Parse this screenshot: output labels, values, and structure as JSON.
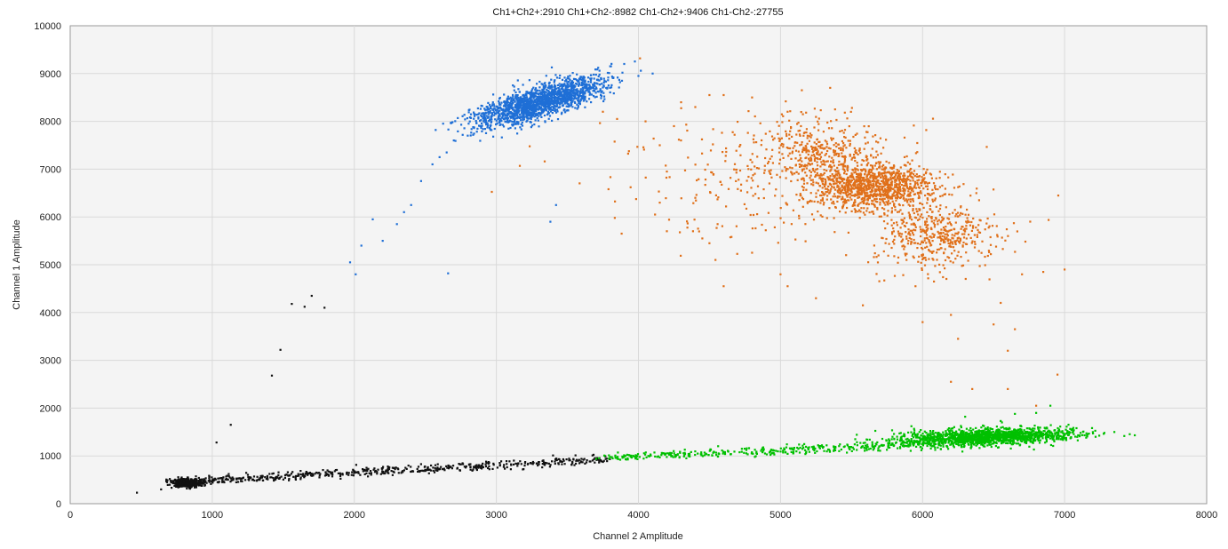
{
  "chart_data": {
    "type": "scatter",
    "title": "Ch1+Ch2+:2910 Ch1+Ch2-:8982 Ch1-Ch2+:9406 Ch1-Ch2-:27755",
    "xlabel": "Channel 2 Amplitude",
    "ylabel": "Channel 1 Amplitude",
    "xlim": [
      0,
      8000
    ],
    "ylim": [
      0,
      10000
    ],
    "x_ticks": [
      0,
      1000,
      2000,
      3000,
      4000,
      5000,
      6000,
      7000,
      8000
    ],
    "y_ticks": [
      0,
      1000,
      2000,
      3000,
      4000,
      5000,
      6000,
      7000,
      8000,
      9000,
      10000
    ],
    "grid": true,
    "legend": "none",
    "series": [
      {
        "color": "#111111",
        "clusters": [
          {
            "cx": 820,
            "cy": 430,
            "sx": 55,
            "sy": 45,
            "n": 420
          },
          {
            "line": true,
            "x0": 850,
            "y0": 470,
            "x1": 3800,
            "y1": 930,
            "spread": 45,
            "n": 550
          }
        ],
        "outliers": [
          [
            470,
            230
          ],
          [
            640,
            300
          ],
          [
            1030,
            1280
          ],
          [
            1130,
            1650
          ],
          [
            1420,
            2680
          ],
          [
            1480,
            3220
          ],
          [
            1560,
            4180
          ],
          [
            1650,
            4120
          ],
          [
            1700,
            4350
          ],
          [
            1790,
            4100
          ]
        ]
      },
      {
        "color": "#00c000",
        "clusters": [
          {
            "line": true,
            "x0": 3750,
            "y0": 960,
            "x1": 6100,
            "y1": 1250,
            "spread": 45,
            "n": 380
          },
          {
            "cx": 6450,
            "cy": 1400,
            "sx": 300,
            "sy": 90,
            "n": 1500,
            "rho": 0.3
          }
        ],
        "outliers": [
          [
            6300,
            1820
          ],
          [
            6550,
            1730
          ],
          [
            6650,
            1880
          ],
          [
            6800,
            1900
          ],
          [
            7020,
            1520
          ],
          [
            7200,
            1470
          ],
          [
            7350,
            1500
          ],
          [
            6900,
            2050
          ]
        ]
      },
      {
        "color": "#1f6fd6",
        "clusters": [
          {
            "cx": 3300,
            "cy": 8400,
            "sx": 230,
            "sy": 260,
            "n": 1700,
            "rho": 0.75
          }
        ],
        "outliers": [
          [
            2400,
            6250
          ],
          [
            2300,
            5850
          ],
          [
            2200,
            5500
          ],
          [
            2130,
            5950
          ],
          [
            2050,
            5400
          ],
          [
            2010,
            4800
          ],
          [
            1970,
            5050
          ],
          [
            2470,
            6750
          ],
          [
            2550,
            7100
          ],
          [
            2650,
            7350
          ],
          [
            2660,
            4820
          ],
          [
            3420,
            6250
          ],
          [
            3380,
            5900
          ],
          [
            3900,
            9200
          ],
          [
            4000,
            8950
          ],
          [
            4100,
            9000
          ],
          [
            3800,
            8700
          ],
          [
            2700,
            7600
          ],
          [
            2600,
            7250
          ],
          [
            2350,
            6100
          ]
        ]
      },
      {
        "color": "#e0701a",
        "clusters": [
          {
            "cx": 5650,
            "cy": 6650,
            "sx": 220,
            "sy": 230,
            "n": 1050
          },
          {
            "cx": 5250,
            "cy": 7350,
            "sx": 220,
            "sy": 350,
            "n": 380
          },
          {
            "cx": 6100,
            "cy": 5600,
            "sx": 230,
            "sy": 330,
            "n": 450
          },
          {
            "cx": 5100,
            "cy": 6800,
            "sx": 650,
            "sy": 700,
            "n": 300
          }
        ],
        "outliers": [
          [
            4300,
            8400
          ],
          [
            4400,
            8300
          ],
          [
            4500,
            8550
          ],
          [
            4250,
            7900
          ],
          [
            4050,
            8000
          ],
          [
            4150,
            7500
          ],
          [
            4200,
            6950
          ],
          [
            4150,
            6300
          ],
          [
            4400,
            6400
          ],
          [
            4200,
            5700
          ],
          [
            4450,
            5550
          ],
          [
            4500,
            5450
          ],
          [
            4600,
            4550
          ],
          [
            4800,
            5250
          ],
          [
            5000,
            4800
          ],
          [
            5050,
            4550
          ],
          [
            5250,
            4300
          ],
          [
            5580,
            4150
          ],
          [
            5950,
            4550
          ],
          [
            6000,
            3800
          ],
          [
            6200,
            3950
          ],
          [
            6600,
            3200
          ],
          [
            6650,
            3650
          ],
          [
            6250,
            3450
          ],
          [
            6500,
            3750
          ],
          [
            6200,
            2550
          ],
          [
            6350,
            2400
          ],
          [
            6600,
            2400
          ],
          [
            6800,
            2050
          ],
          [
            6950,
            2700
          ],
          [
            6550,
            4200
          ],
          [
            6700,
            4800
          ],
          [
            6850,
            4850
          ],
          [
            7000,
            4900
          ],
          [
            5150,
            8650
          ],
          [
            5350,
            8700
          ],
          [
            4600,
            8550
          ],
          [
            4800,
            8500
          ],
          [
            5050,
            8200
          ],
          [
            3750,
            8200
          ],
          [
            3850,
            8050
          ]
        ]
      }
    ]
  }
}
